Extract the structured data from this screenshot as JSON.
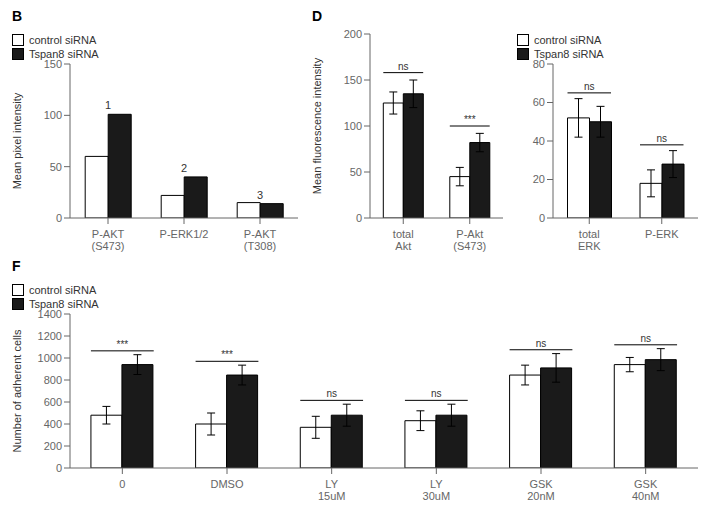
{
  "chart_data": [
    {
      "type": "bar",
      "title": "B",
      "categories": [
        "P-AKT\n(S473)",
        "P-ERK1/2",
        "P-AKT\n(T308)"
      ],
      "series": [
        {
          "name": "control siRNA",
          "color": "#ffffff",
          "values": [
            60,
            22,
            15
          ]
        },
        {
          "name": "Tspan8 siRNA",
          "color": "#1a1a1a",
          "values": [
            101,
            40,
            14
          ]
        }
      ],
      "ylabel": "Mean pixel intensity",
      "ylim": [
        0,
        150
      ],
      "yticks": [
        0,
        50,
        100,
        150
      ],
      "legend": "upper right",
      "grid": false,
      "annotations": [
        {
          "text": "1",
          "category": "P-AKT\n(S473)",
          "y": 103
        },
        {
          "text": "2",
          "category": "P-ERK1/2",
          "y": 42
        },
        {
          "text": "3",
          "category": "P-AKT\n(T308)",
          "y": 16
        }
      ]
    },
    {
      "type": "bar",
      "title": "D",
      "categories": [
        "total\nAkt",
        "P-Akt\n(S473)"
      ],
      "series": [
        {
          "name": "control siRNA",
          "color": "#ffffff",
          "values": [
            125,
            45
          ],
          "errors": [
            12,
            10
          ]
        },
        {
          "name": "Tspan8 siRNA",
          "color": "#1a1a1a",
          "values": [
            135,
            82
          ],
          "errors": [
            15,
            10
          ]
        }
      ],
      "ylabel": "Mean fluorescence intensity",
      "ylim": [
        0,
        200
      ],
      "yticks": [
        0,
        50,
        100,
        150,
        200
      ],
      "grid": false,
      "brackets": [
        {
          "text": "ns",
          "category": "total\nAkt",
          "y": 158
        },
        {
          "text": "***",
          "category": "P-Akt\n(S473)",
          "y": 100
        }
      ]
    },
    {
      "type": "bar",
      "categories": [
        "total\nERK",
        "P-ERK"
      ],
      "series": [
        {
          "name": "control siRNA",
          "color": "#ffffff",
          "values": [
            52,
            18
          ],
          "errors": [
            10,
            7
          ]
        },
        {
          "name": "Tspan8 siRNA",
          "color": "#1a1a1a",
          "values": [
            50,
            28
          ],
          "errors": [
            8,
            7
          ]
        }
      ],
      "ylim": [
        0,
        80
      ],
      "yticks": [
        0,
        20,
        40,
        60,
        80
      ],
      "legend": "upper right",
      "grid": false,
      "brackets": [
        {
          "text": "ns",
          "category": "total\nERK",
          "y": 65
        },
        {
          "text": "ns",
          "category": "P-ERK",
          "y": 38
        }
      ]
    },
    {
      "type": "bar",
      "title": "F",
      "categories": [
        "0",
        "DMSO",
        "LY\n15uM",
        "LY\n30uM",
        "GSK\n20nM",
        "GSK\n40nM"
      ],
      "series": [
        {
          "name": "control siRNA",
          "color": "#ffffff",
          "values": [
            480,
            400,
            370,
            430,
            845,
            940
          ],
          "errors": [
            80,
            100,
            100,
            90,
            90,
            65
          ]
        },
        {
          "name": "Tspan8 siRNA",
          "color": "#1a1a1a",
          "values": [
            940,
            845,
            480,
            480,
            910,
            985
          ],
          "errors": [
            90,
            90,
            100,
            100,
            130,
            100
          ]
        }
      ],
      "ylabel": "Number of adherent cells",
      "ylim": [
        0,
        1400
      ],
      "yticks": [
        0,
        200,
        400,
        600,
        800,
        1000,
        1200,
        1400
      ],
      "legend": "upper left",
      "grid": false,
      "brackets": [
        {
          "text": "***",
          "category": "0",
          "y": 1065
        },
        {
          "text": "***",
          "category": "DMSO",
          "y": 970
        },
        {
          "text": "ns",
          "category": "LY\n15uM",
          "y": 615
        },
        {
          "text": "ns",
          "category": "LY\n30uM",
          "y": 615
        },
        {
          "text": "ns",
          "category": "GSK\n20nM",
          "y": 1075
        },
        {
          "text": "ns",
          "category": "GSK\n40nM",
          "y": 1120
        }
      ]
    }
  ]
}
